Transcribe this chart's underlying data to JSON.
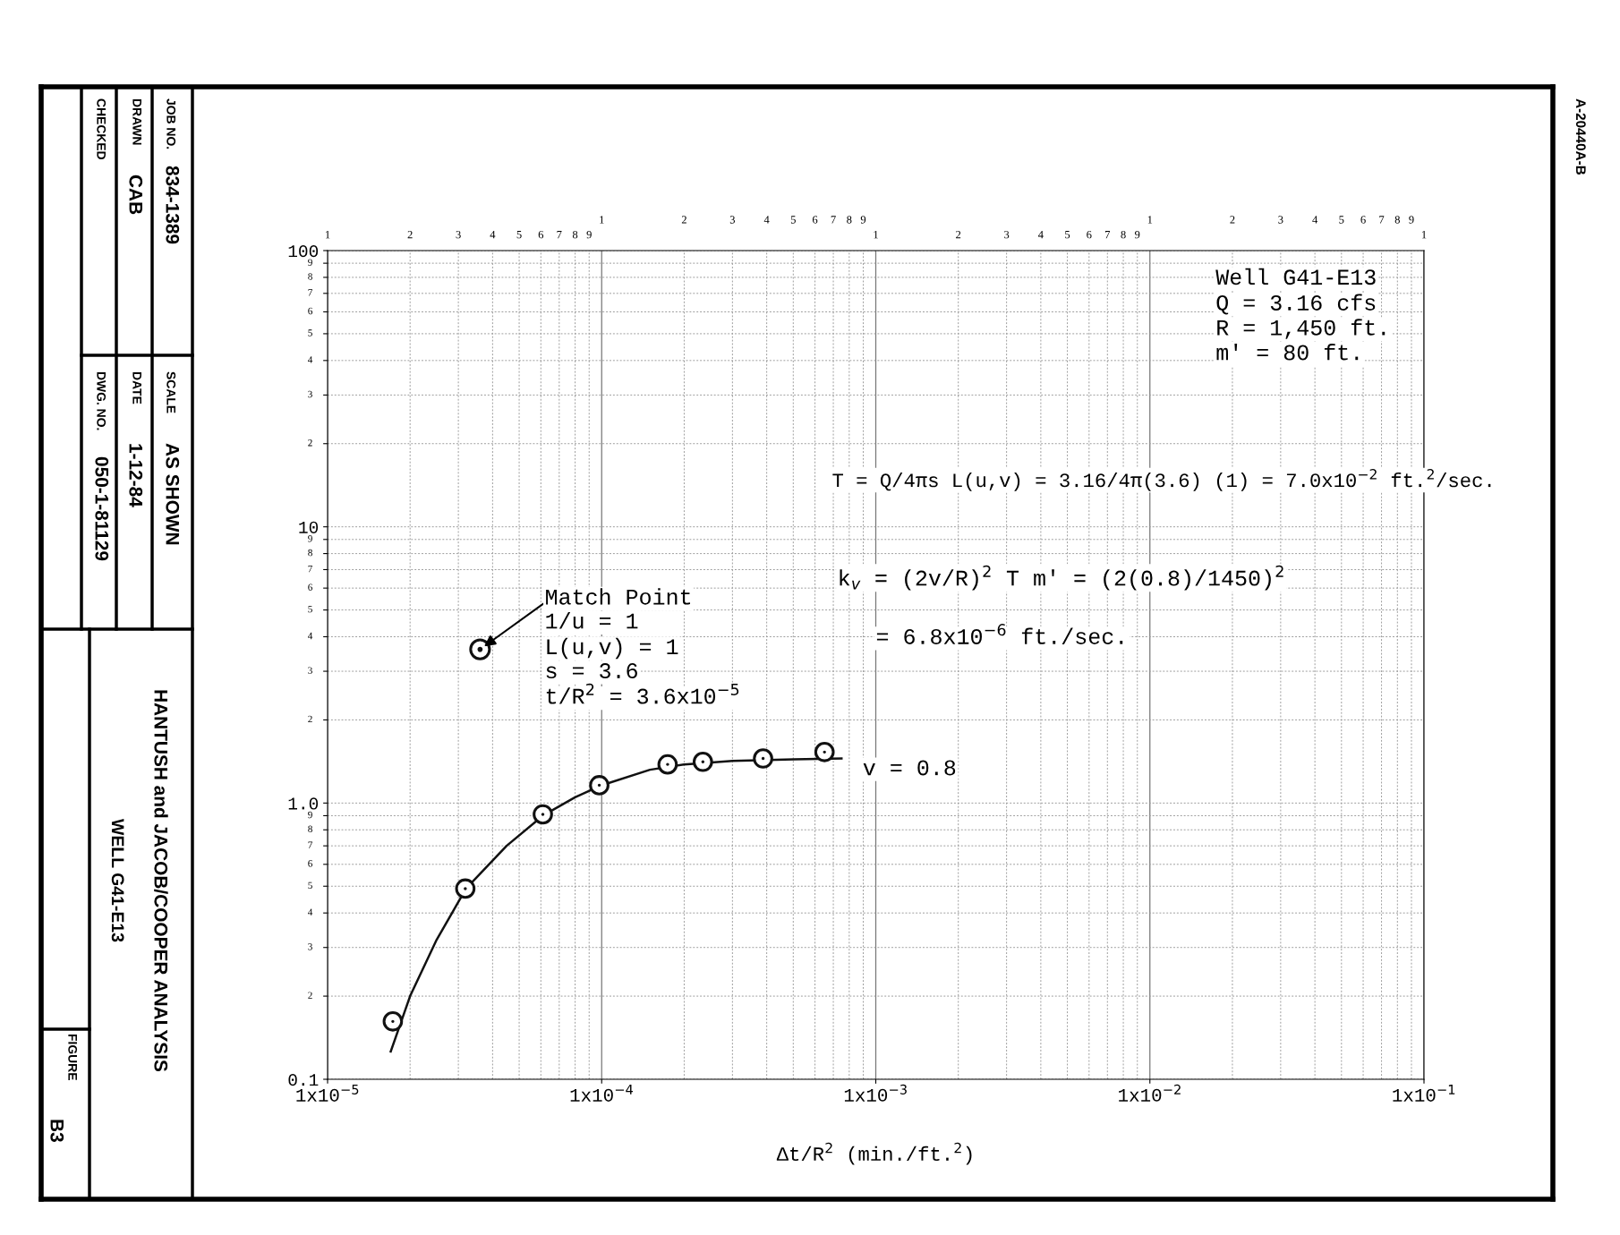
{
  "chart_data": {
    "type": "scatter",
    "xlabel": "Δt/R$^{2}$ (min./ft.$^{2}$)",
    "log": "xy",
    "xlim": [
      1e-05,
      0.1
    ],
    "xticks": [
      {
        "value": 1e-05,
        "label": "1x10$^{−5}$"
      },
      {
        "value": 0.0001,
        "label": "1x10$^{−4}$"
      },
      {
        "value": 0.001,
        "label": "1x10$^{−3}$"
      },
      {
        "value": 0.01,
        "label": "1x10$^{−2}$"
      },
      {
        "value": 0.1,
        "label": "1x10$^{−1}$"
      }
    ],
    "ylim": [
      0.1,
      100
    ],
    "yticks": [
      {
        "value": 0.1,
        "label": "0.1"
      },
      {
        "value": 0.2,
        "label": null
      },
      {
        "value": 0.3,
        "label": null
      },
      {
        "value": 0.4,
        "label": null
      },
      {
        "value": 0.5,
        "label": null
      },
      {
        "value": 0.6,
        "label": null
      },
      {
        "value": 0.7,
        "label": null
      },
      {
        "value": 0.8,
        "label": null
      },
      {
        "value": 0.9,
        "label": null
      },
      {
        "value": 1,
        "label": "1.0"
      },
      {
        "value": 2,
        "label": null
      },
      {
        "value": 3,
        "label": null
      },
      {
        "value": 4,
        "label": null
      },
      {
        "value": 5,
        "label": null
      },
      {
        "value": 6,
        "label": null
      },
      {
        "value": 7,
        "label": null
      },
      {
        "value": 8,
        "label": null
      },
      {
        "value": 9,
        "label": null
      },
      {
        "value": 10,
        "label": "10"
      },
      {
        "value": 20,
        "label": null
      },
      {
        "value": 30,
        "label": null
      },
      {
        "value": 40,
        "label": null
      },
      {
        "value": 50,
        "label": null
      },
      {
        "value": 60,
        "label": null
      },
      {
        "value": 70,
        "label": null
      },
      {
        "value": 80,
        "label": null
      },
      {
        "value": 90,
        "label": null
      },
      {
        "value": 100,
        "label": "100"
      }
    ],
    "grid": true,
    "series": [
      {
        "type": "line",
        "color": "#111111",
        "marker": "none",
        "line_style": "solid",
        "x": [
          1.7e-05,
          2e-05,
          2.5e-05,
          3.2e-05,
          4.5e-05,
          6.1e-05,
          8e-05,
          0.0001,
          0.00015,
          0.0002,
          0.0003,
          0.0005,
          0.00075
        ],
        "values": [
          0.126,
          0.2,
          0.32,
          0.49,
          0.7,
          0.9,
          1.05,
          1.16,
          1.32,
          1.38,
          1.42,
          1.44,
          1.45
        ]
      },
      {
        "color": "#111111",
        "marker": "circle",
        "x": [
          1.73e-05,
          3.18e-05,
          6.1e-05,
          9.8e-05,
          0.000174,
          0.000234,
          0.000388,
          0.00065
        ],
        "values": [
          0.162,
          0.49,
          0.91,
          1.16,
          1.38,
          1.41,
          1.45,
          1.53
        ]
      },
      {
        "color": "#111111",
        "marker": "circle",
        "x": [
          3.6e-05
        ],
        "values": [
          3.6
        ]
      }
    ],
    "annotations": [
      "JOB NO.",
      "834-1389",
      "DRAWN",
      "CAB",
      "CHECKED",
      "SCALE",
      "AS SHOWN",
      "DATE",
      "1-12-84",
      "DWG. NO.",
      "050-1-81129",
      "HANTUSH and JACOB/COOPER ANALYSIS",
      "WELL G41-E13",
      "FIGURE",
      "B3",
      "A-20440A-B",
      "Well G41-E13",
      "Q = 3.16 cfs",
      "R = 1,450 ft.",
      "m' = 80 ft.",
      "T = Q/4πs L(u,v) = 3.16/4π(3.6) (1) = 7.0x10$^{−2}$ ft.$^{2}$/sec.",
      "k$_{v}$ = (2v/R)$^{2}$ T m' = (2(0.8)/1450)$^{2}$",
      "= 6.8x10$^{−6}$ ft./sec.",
      {
        "text": "Match Point",
        "x": 3.6e-05,
        "y": 3.6
      },
      "1/u = 1",
      "L(u,v) = 1",
      "s = 3.6",
      "t/R$^{2}$ = 3.6x10$^{−5}$",
      "v = 0.8",
      "2",
      "3",
      "4",
      "5",
      "6",
      "7",
      "8",
      "9",
      "2",
      "3",
      "4",
      "5",
      "6",
      "7",
      "8",
      "9",
      "2",
      "3",
      "4",
      "5",
      "6",
      "7",
      "8",
      "9",
      "1",
      "2",
      "3",
      "4",
      "5",
      "6",
      "7",
      "8",
      "9",
      "1",
      "2",
      "3",
      "4",
      "5",
      "6",
      "7",
      "8",
      "9",
      "1",
      "2",
      "3",
      "4",
      "5",
      "6",
      "7",
      "8",
      "9",
      "1",
      "2",
      "3",
      "4",
      "5",
      "6",
      "7",
      "8",
      "9",
      "1"
    ]
  }
}
